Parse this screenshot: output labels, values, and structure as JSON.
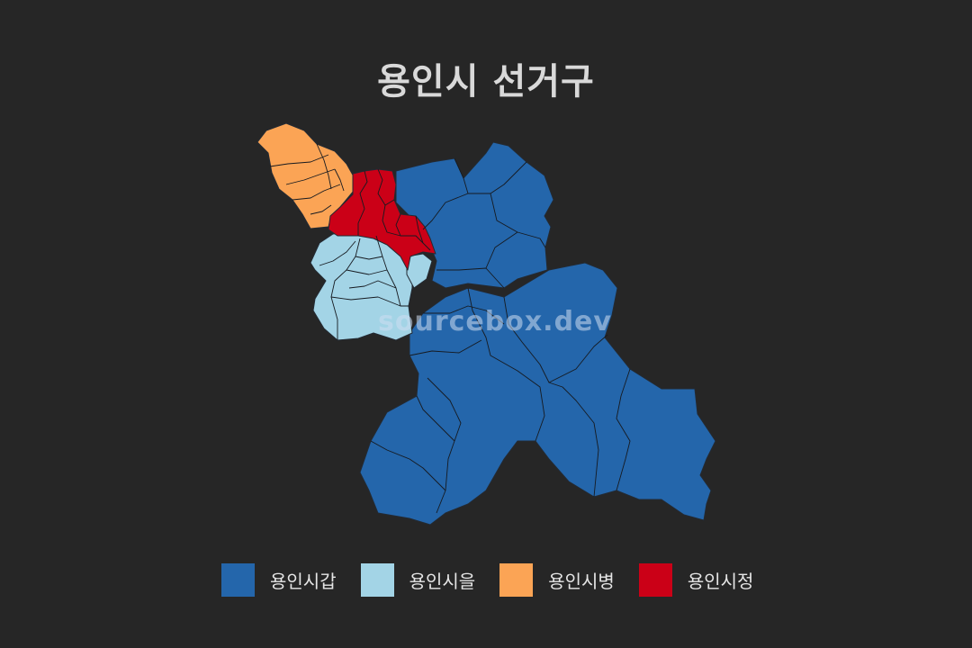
{
  "title": "용인시 선거구",
  "watermark": "sourcebox.dev",
  "legend": [
    {
      "label": "용인시갑",
      "color": "#2466ab"
    },
    {
      "label": "용인시을",
      "color": "#a3d4e6"
    },
    {
      "label": "용인시병",
      "color": "#fba455"
    },
    {
      "label": "용인시정",
      "color": "#cb0017"
    }
  ],
  "colors": {
    "background": "#262626",
    "border": "#232a33",
    "district_border": "#161a20"
  }
}
